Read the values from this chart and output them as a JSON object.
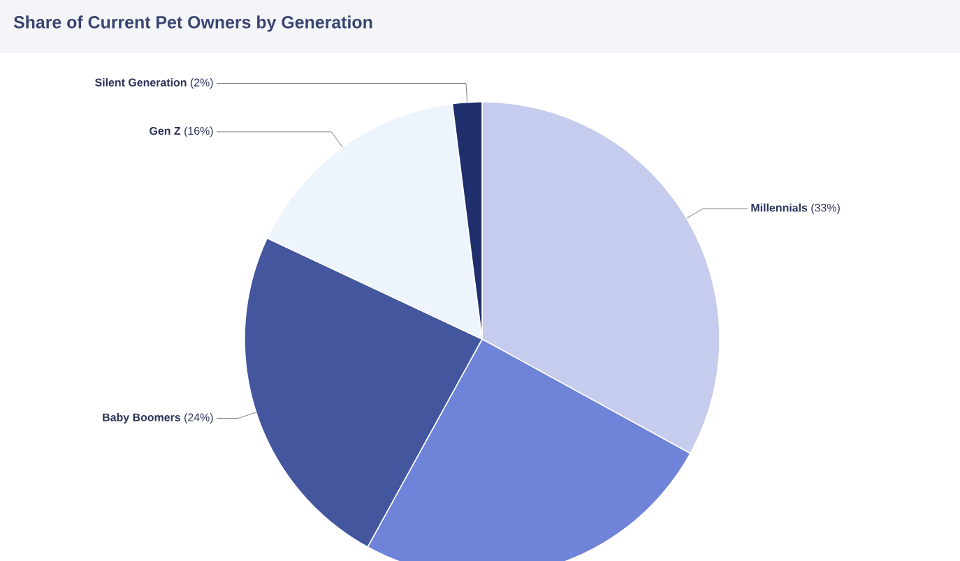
{
  "chart_data": {
    "type": "pie",
    "title": "Share of Current Pet Owners by Generation",
    "categories": [
      "Millennials",
      null,
      "Baby Boomers",
      "Gen Z",
      "Silent Generation"
    ],
    "values": [
      33,
      25,
      24,
      16,
      2
    ],
    "value_labels": [
      "(33%)",
      null,
      "(24%)",
      "(16%)",
      "(2%)"
    ],
    "colors": [
      "#c6cced",
      "#6f83d8",
      "#43569e",
      "#eef4fc",
      "#1f2e6c"
    ]
  }
}
